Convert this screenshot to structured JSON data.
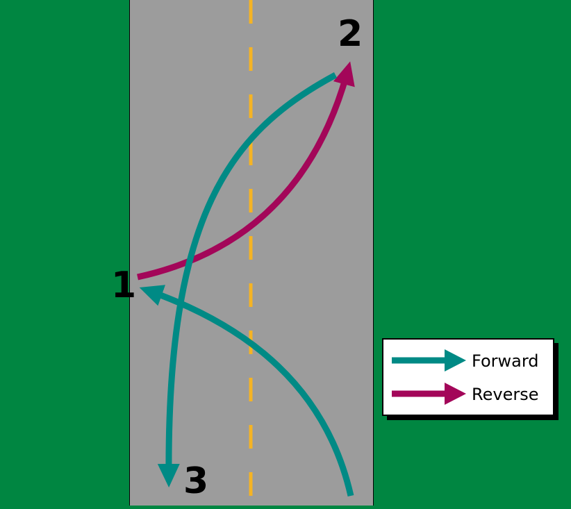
{
  "colors": {
    "grass": "#008641",
    "road": "#9c9c9c",
    "center_line": "#f5b324",
    "forward": "#008a85",
    "reverse": "#a30659",
    "legend_bg": "#ffffff",
    "legend_border": "#000000"
  },
  "steps": {
    "one": "1",
    "two": "2",
    "three": "3"
  },
  "legend": {
    "forward_label": "Forward",
    "reverse_label": "Reverse"
  }
}
